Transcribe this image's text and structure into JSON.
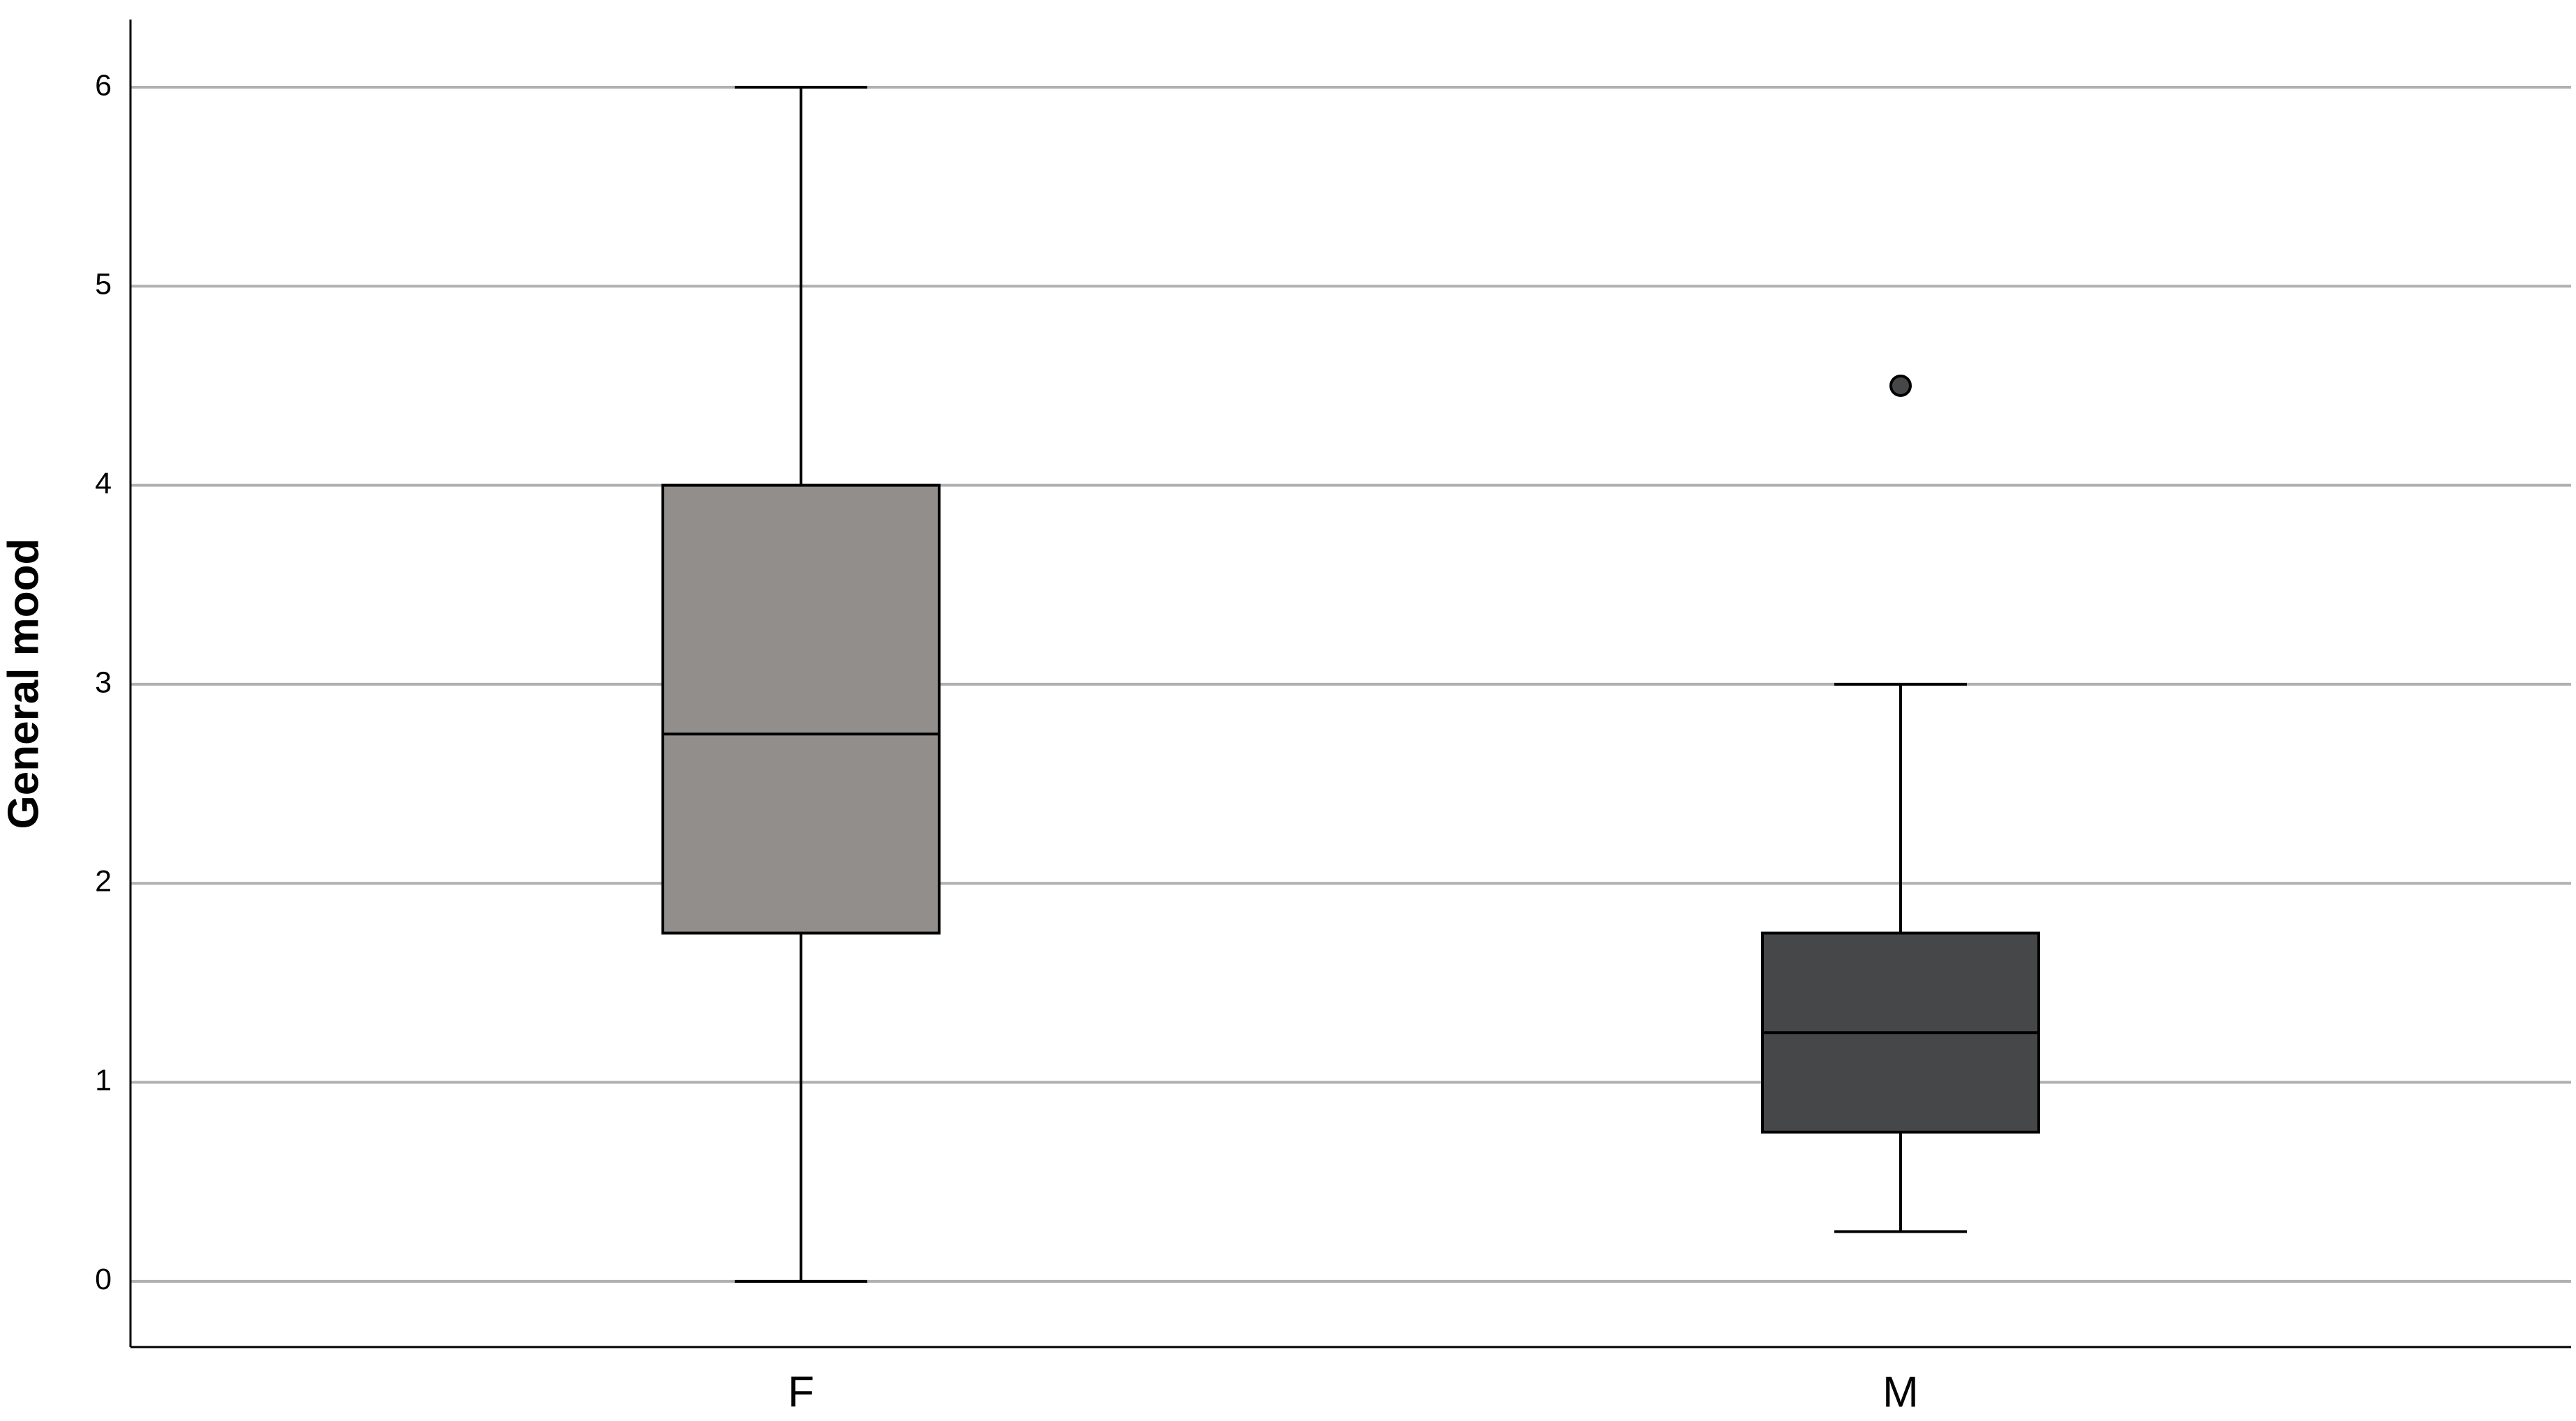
{
  "chart_data": {
    "type": "box",
    "ylabel": "General mood",
    "categories": [
      "F",
      "M"
    ],
    "boxes": [
      {
        "min": 0,
        "q1": 1.75,
        "median": 2.75,
        "q3": 4,
        "max": 6,
        "color": "#918e8c"
      },
      {
        "min": 0.25,
        "q1": 0.75,
        "median": 1.25,
        "q3": 1.75,
        "max": 3,
        "outliers": [
          4.5
        ],
        "color": "#464749"
      }
    ],
    "ylim": [
      -0.33,
      6.34
    ],
    "yticks": [
      0,
      1,
      2,
      3,
      4,
      5,
      6
    ],
    "grid": true
  }
}
